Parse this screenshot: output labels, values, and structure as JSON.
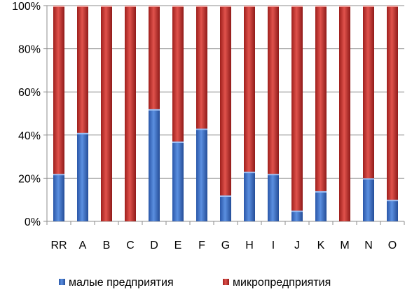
{
  "chart_data": {
    "type": "bar",
    "stacked": true,
    "percent": true,
    "categories": [
      "RR",
      "A",
      "B",
      "C",
      "D",
      "E",
      "F",
      "G",
      "H",
      "I",
      "J",
      "K",
      "M",
      "N",
      "O"
    ],
    "series": [
      {
        "name": "малые предприятия",
        "color": "#3a6fc4",
        "values": [
          22,
          41,
          0,
          0,
          52,
          37,
          43,
          12,
          23,
          22,
          5,
          14,
          0,
          20,
          10
        ]
      },
      {
        "name": "микропредприятия",
        "color": "#c0302c",
        "values": [
          78,
          59,
          100,
          100,
          48,
          63,
          57,
          88,
          77,
          78,
          95,
          86,
          100,
          80,
          90
        ]
      }
    ],
    "ylim": [
      0,
      100
    ],
    "yticks": [
      "0%",
      "20%",
      "40%",
      "60%",
      "80%",
      "100%"
    ],
    "grid": true,
    "legend": "bottom"
  }
}
